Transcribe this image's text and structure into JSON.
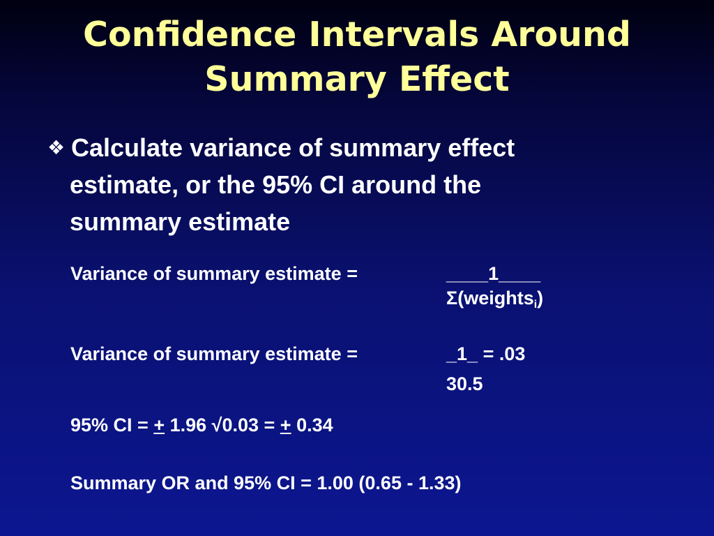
{
  "title": {
    "line1": "Confidence Intervals Around",
    "line2": "Summary Effect"
  },
  "bullet": {
    "glyph_icon": "diamond-bullet-icon",
    "line1": "Calculate variance of summary effect",
    "line2": "estimate, or the 95% CI around the",
    "line3": "summary estimate"
  },
  "formula1": {
    "label": "Variance of summary estimate =",
    "numerator": "____1____",
    "denominator_main": "Σ(weights",
    "denominator_sub": "i",
    "denominator_close": ")"
  },
  "formula2": {
    "label": "Variance of summary estimate =",
    "numerator": "_1_",
    "result": " = .03",
    "denominator": "30.5"
  },
  "ci": {
    "prefix": "95% CI = ",
    "pm1": "+",
    "middle": " 1.96 √0.03 = ",
    "pm2": "+",
    "suffix": " 0.34"
  },
  "summary_or": {
    "text": "Summary OR and 95% CI = 1.00 (0.65 - 1.33)"
  }
}
